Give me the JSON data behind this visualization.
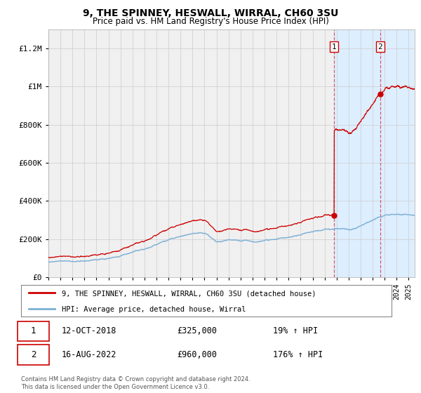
{
  "title": "9, THE SPINNEY, HESWALL, WIRRAL, CH60 3SU",
  "subtitle": "Price paid vs. HM Land Registry's House Price Index (HPI)",
  "x_start_year": 1995.0,
  "x_end_year": 2025.5,
  "ylim": [
    0,
    1300000
  ],
  "yticks": [
    0,
    200000,
    400000,
    600000,
    800000,
    1000000,
    1200000
  ],
  "ytick_labels": [
    "£0",
    "£200K",
    "£400K",
    "£600K",
    "£800K",
    "£1M",
    "£1.2M"
  ],
  "sale1_date": 2018.79,
  "sale1_price": 325000,
  "sale2_date": 2022.62,
  "sale2_price": 960000,
  "hpi_color": "#7bafd4",
  "price_color": "#cc0000",
  "shade_color": "#ddeeff",
  "grid_color": "#cccccc",
  "bg_color": "#f0f0f0",
  "legend_text1": "9, THE SPINNEY, HESWALL, WIRRAL, CH60 3SU (detached house)",
  "legend_text2": "HPI: Average price, detached house, Wirral",
  "ann1_date": "12-OCT-2018",
  "ann1_price": "£325,000",
  "ann1_hpi": "19% ↑ HPI",
  "ann2_date": "16-AUG-2022",
  "ann2_price": "£960,000",
  "ann2_hpi": "176% ↑ HPI",
  "footer": "Contains HM Land Registry data © Crown copyright and database right 2024.\nThis data is licensed under the Open Government Licence v3.0."
}
